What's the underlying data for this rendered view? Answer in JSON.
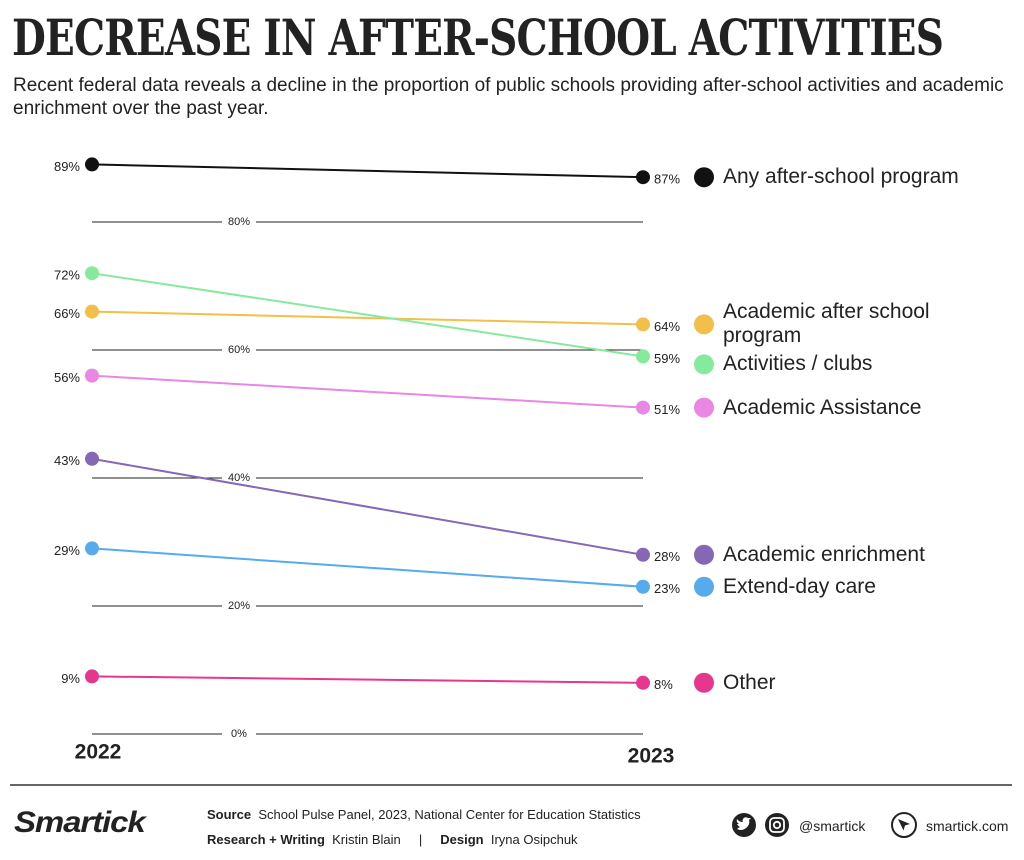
{
  "chart_data": {
    "type": "slope",
    "title": "DECREASE IN AFTER-SCHOOL ACTIVITIES",
    "subtitle": "Recent federal data reveals a decline in the proportion of public schools providing after-school activities and academic enrichment over the past year.",
    "categories": [
      "2022",
      "2023"
    ],
    "series": [
      {
        "name": "Any after-school program",
        "color": "#111111",
        "values": [
          89,
          87
        ],
        "value_labels": [
          "89%",
          "87%"
        ]
      },
      {
        "name": "Academic after school program",
        "color": "#f2c04a",
        "values": [
          66,
          64
        ],
        "value_labels": [
          "66%",
          "64%"
        ]
      },
      {
        "name": "Activities / clubs",
        "color": "#86ea9c",
        "values": [
          72,
          59
        ],
        "value_labels": [
          "72%",
          "59%"
        ]
      },
      {
        "name": "Academic Assistance",
        "color": "#e887e4",
        "values": [
          56,
          51
        ],
        "value_labels": [
          "56%",
          "51%"
        ]
      },
      {
        "name": "Academic enrichment",
        "color": "#8468b5",
        "values": [
          43,
          28
        ],
        "value_labels": [
          "43%",
          "28%"
        ]
      },
      {
        "name": "Extend-day care",
        "color": "#56aaee",
        "values": [
          29,
          23
        ],
        "value_labels": [
          "29%",
          "23%"
        ]
      },
      {
        "name": "Other",
        "color": "#e6378e",
        "values": [
          9,
          8
        ],
        "value_labels": [
          "9%",
          "8%"
        ]
      }
    ],
    "ylim": [
      0,
      95
    ],
    "yticks": [
      {
        "value": 0,
        "label": "0%"
      },
      {
        "value": 20,
        "label": "20%"
      },
      {
        "value": 40,
        "label": "40%"
      },
      {
        "value": 60,
        "label": "60%"
      },
      {
        "value": 80,
        "label": "80%"
      }
    ],
    "grid": true
  },
  "footer": {
    "logo": "Smartick",
    "source_label": "Source",
    "source": "School Pulse Panel, 2023, National Center for Education Statistics",
    "research_label": "Research + Writing",
    "research": "Kristin Blain",
    "separator": "|",
    "design_label": "Design",
    "design": "Iryna Osipchuk",
    "social": "@smartick",
    "website": "smartick.com"
  }
}
